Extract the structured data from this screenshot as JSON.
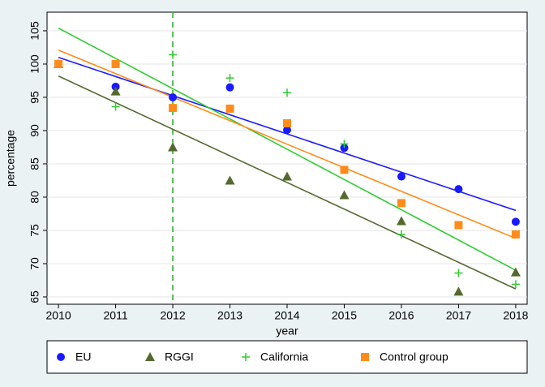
{
  "chart_data": {
    "type": "scatter",
    "y_label": "percentage",
    "x_label": "year",
    "x": [
      2010,
      2011,
      2012,
      2013,
      2014,
      2015,
      2016,
      2017,
      2018
    ],
    "xlim": [
      2009.8,
      2018.2
    ],
    "xticks": [
      2010,
      2011,
      2012,
      2013,
      2014,
      2015,
      2016,
      2017,
      2018
    ],
    "ylim": [
      63.9,
      107.8
    ],
    "yticks": [
      65,
      70,
      75,
      80,
      85,
      90,
      95,
      100,
      105
    ],
    "grid": true,
    "reference_line_x": 2012,
    "reference_line_color": "#22aa22",
    "series": [
      {
        "name": "EU",
        "color": "#1a1aff",
        "marker": "circle",
        "values": [
          100,
          96.6,
          95.0,
          96.5,
          90.1,
          87.4,
          83.1,
          81.2,
          76.3
        ],
        "fit": [
          101.0,
          78.0
        ]
      },
      {
        "name": "RGGI",
        "color": "#55692f",
        "marker": "triangle",
        "values": [
          100,
          95.9,
          87.5,
          82.5,
          83.1,
          80.3,
          76.4,
          65.8,
          68.7
        ],
        "fit": [
          98.2,
          66.2
        ]
      },
      {
        "name": "California",
        "color": "#2ecc2e",
        "marker": "plus",
        "values": [
          100,
          93.6,
          101.4,
          97.9,
          95.7,
          88.0,
          74.4,
          68.6,
          66.9
        ],
        "fit": [
          105.4,
          69.0
        ]
      },
      {
        "name": "Control group",
        "color": "#ff8c1a",
        "marker": "square",
        "values": [
          100,
          100,
          93.4,
          93.3,
          91.1,
          84.1,
          79.1,
          75.8,
          74.4
        ],
        "fit": [
          102.1,
          73.8
        ]
      }
    ]
  }
}
